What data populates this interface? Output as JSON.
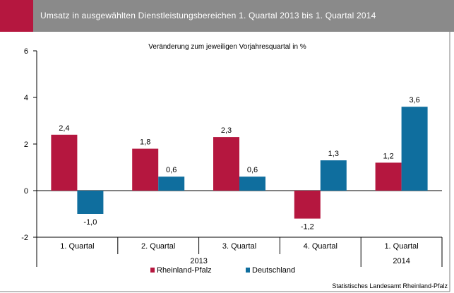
{
  "header": {
    "title": "Umsatz in ausgewählten Dienstleistungsbereichen 1. Quartal  2013 bis 1. Quartal 2014"
  },
  "colors": {
    "header_bg": "#8a8a8a",
    "header_accent": "#b5173f",
    "series_rlp": "#b5173f",
    "series_de": "#0f6e9e"
  },
  "source": "Statistisches Landesamt Rheinland-Pfalz",
  "chart_data": {
    "type": "bar",
    "title": "",
    "subtitle": "Veränderung zum jeweiligen Vorjahresquartal  in %",
    "categories": [
      "1. Quartal",
      "2. Quartal",
      "3. Quartal",
      "4. Quartal",
      "1. Quartal"
    ],
    "category_groups": [
      {
        "label": "2013",
        "span": 4
      },
      {
        "label": "2014",
        "span": 1
      }
    ],
    "series": [
      {
        "name": "Rheinland-Pfalz",
        "values": [
          2.4,
          1.8,
          2.3,
          -1.2,
          1.2
        ],
        "labels": [
          "2,4",
          "1,8",
          "2,3",
          "-1,2",
          "1,2"
        ],
        "color": "#b5173f"
      },
      {
        "name": "Deutschland",
        "values": [
          -1.0,
          0.6,
          0.6,
          1.3,
          3.6
        ],
        "labels": [
          "-1,0",
          "0,6",
          "0,6",
          "1,3",
          "3,6"
        ],
        "color": "#0f6e9e"
      }
    ],
    "ylim": [
      -2,
      6
    ],
    "yticks": [
      -2,
      0,
      2,
      4,
      6
    ],
    "xlabel": "",
    "ylabel": "",
    "grid": false,
    "legend": "bottom-center"
  }
}
